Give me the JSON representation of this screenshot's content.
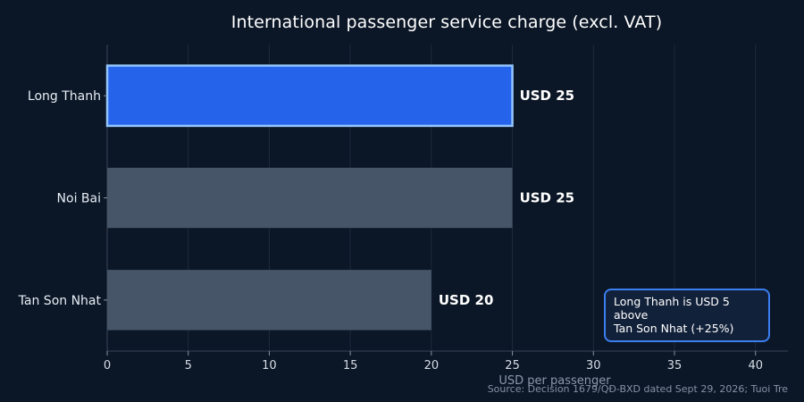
{
  "chart_data": {
    "type": "bar",
    "orientation": "horizontal",
    "title": "International passenger service charge (excl. VAT)",
    "xlabel": "USD per passenger",
    "ylabel": "",
    "categories": [
      "Long Thanh",
      "Noi Bai",
      "Tan Son Nhat"
    ],
    "values": [
      25,
      25,
      20
    ],
    "value_labels": [
      "USD 25",
      "USD 25",
      "USD 20"
    ],
    "xlim": [
      0,
      42
    ],
    "xticks": [
      0,
      5,
      10,
      15,
      20,
      25,
      30,
      35,
      40
    ],
    "grid": "vertical",
    "highlight_category": "Long Thanh",
    "colors": {
      "highlight": "#2563eb",
      "highlight_edge": "#93c5fd",
      "default": "#475569",
      "background": "#0b1626",
      "grid": "#1e2a3b",
      "callout_border": "#3b7ef0"
    },
    "annotation": {
      "line1": "Long Thanh is USD 5 above",
      "line2": "Tan Son Nhat (+25%)",
      "position": "bottom-right"
    },
    "source": "Source: Decision 1679/QĐ-BXD dated Sept 29, 2026; Tuoi Tre"
  }
}
